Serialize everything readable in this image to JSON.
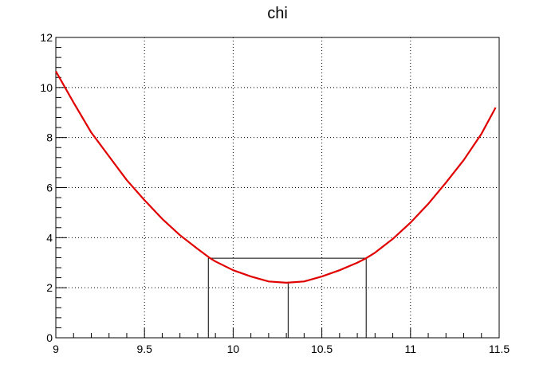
{
  "chart_data": {
    "type": "line",
    "title": "chi",
    "xlabel": "",
    "ylabel": "",
    "xlim": [
      9,
      11.5
    ],
    "ylim": [
      0,
      12
    ],
    "grid": true,
    "x_ticks": [
      "9",
      "9.5",
      "10",
      "10.5",
      "11",
      "11.5"
    ],
    "y_ticks": [
      "0",
      "2",
      "4",
      "6",
      "8",
      "10",
      "12"
    ],
    "series": [
      {
        "color": "#e00000",
        "x": [
          9.0,
          9.1,
          9.2,
          9.3,
          9.4,
          9.5,
          9.6,
          9.7,
          9.8,
          9.87,
          9.9,
          10.0,
          10.1,
          10.2,
          10.3,
          10.4,
          10.5,
          10.6,
          10.7,
          10.75,
          10.8,
          10.9,
          11.0,
          11.1,
          11.2,
          11.3,
          11.4,
          11.48
        ],
        "y": [
          10.65,
          9.4,
          8.2,
          7.25,
          6.3,
          5.5,
          4.75,
          4.1,
          3.55,
          3.18,
          3.05,
          2.7,
          2.45,
          2.25,
          2.2,
          2.25,
          2.45,
          2.7,
          3.0,
          3.18,
          3.4,
          3.95,
          4.6,
          5.35,
          6.2,
          7.1,
          8.15,
          9.2
        ]
      }
    ],
    "annotations": {
      "min_x": 10.31,
      "min_y": 2.2,
      "lower_x": 9.86,
      "upper_x": 10.75,
      "level_y": 3.18,
      "line_color": "#000000"
    }
  }
}
